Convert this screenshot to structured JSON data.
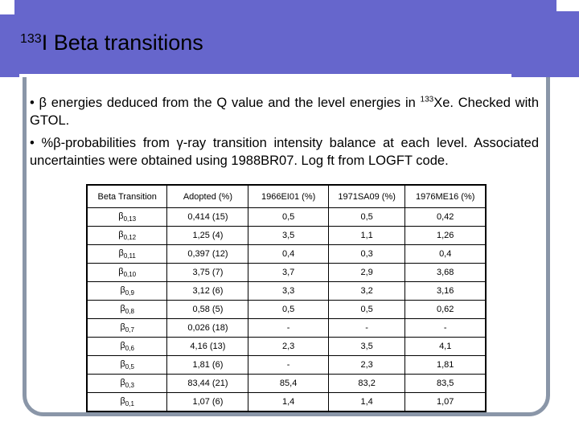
{
  "slide": {
    "title_sup": "133",
    "title_main": "I Beta transitions",
    "bullet1_part1": "• β energies deduced from the Q value and the level energies in ",
    "bullet1_sup": "133",
    "bullet1_part2": "Xe. Checked with GTOL.",
    "bullet2": "• %β-probabilities from γ-ray transition intensity balance at each level. Associated uncertainties were obtained using 1988BR07. Log ft from LOGFT code."
  },
  "table": {
    "headers": [
      "Beta Transition",
      "Adopted (%)",
      "1966EI01 (%)",
      "1971SA09 (%)",
      "1976ME16 (%)"
    ],
    "rows": [
      {
        "sym": "β",
        "sub": "0,13",
        "adopted": "0,414 (15)",
        "c1966": "0,5",
        "c1971": "0,5",
        "c1976": "0,42"
      },
      {
        "sym": "β",
        "sub": "0,12",
        "adopted": "1,25 (4)",
        "c1966": "3,5",
        "c1971": "1,1",
        "c1976": "1,26"
      },
      {
        "sym": "β",
        "sub": "0,11",
        "adopted": "0,397 (12)",
        "c1966": "0,4",
        "c1971": "0,3",
        "c1976": "0,4"
      },
      {
        "sym": "β",
        "sub": "0,10",
        "adopted": "3,75 (7)",
        "c1966": "3,7",
        "c1971": "2,9",
        "c1976": "3,68"
      },
      {
        "sym": "β",
        "sub": "0,9",
        "adopted": "3,12 (6)",
        "c1966": "3,3",
        "c1971": "3,2",
        "c1976": "3,16"
      },
      {
        "sym": "β",
        "sub": "0,8",
        "adopted": "0,58 (5)",
        "c1966": "0,5",
        "c1971": "0,5",
        "c1976": "0,62"
      },
      {
        "sym": "β",
        "sub": "0,7",
        "adopted": "0,026 (18)",
        "c1966": "-",
        "c1971": "-",
        "c1976": "-"
      },
      {
        "sym": "β",
        "sub": "0,6",
        "adopted": "4,16 (13)",
        "c1966": "2,3",
        "c1971": "3,5",
        "c1976": "4,1"
      },
      {
        "sym": "β",
        "sub": "0,5",
        "adopted": "1,81 (6)",
        "c1966": "-",
        "c1971": "2,3",
        "c1976": "1,81"
      },
      {
        "sym": "β",
        "sub": "0,3",
        "adopted": "83,44 (21)",
        "c1966": "85,4",
        "c1971": "83,2",
        "c1976": "83,5"
      },
      {
        "sym": "β",
        "sub": "0,1",
        "adopted": "1,07 (6)",
        "c1966": "1,4",
        "c1971": "1,4",
        "c1976": "1,07"
      }
    ]
  }
}
